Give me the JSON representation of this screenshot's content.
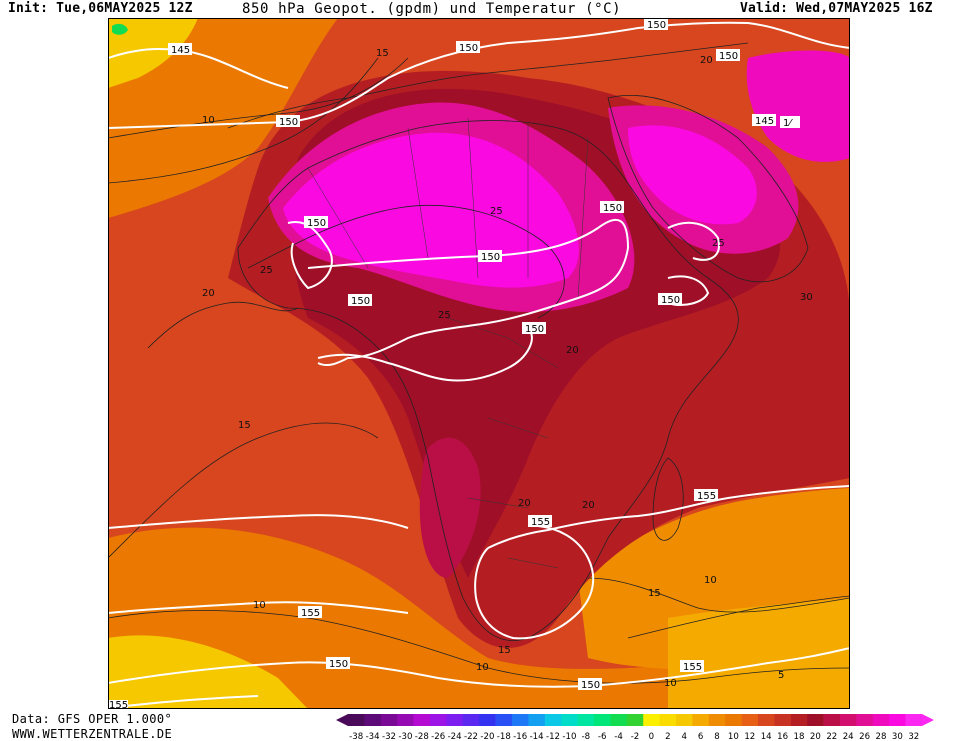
{
  "header": {
    "init": "Init: Tue,06MAY2025 12Z",
    "title": "850 hPa Geopot. (gpdm) und Temperatur (°C)",
    "valid": "Valid: Wed,07MAY2025 16Z"
  },
  "footer": {
    "data_source": "Data: GFS OPER 1.000°",
    "website": "WWW.WETTERZENTRALE.DE"
  },
  "geopotential_labels": [
    {
      "text": "145"
    },
    {
      "text": "150"
    },
    {
      "text": "150"
    },
    {
      "text": "150"
    },
    {
      "text": "150"
    },
    {
      "text": "145"
    },
    {
      "text": "1⁄"
    },
    {
      "text": "150"
    },
    {
      "text": "150"
    },
    {
      "text": "150"
    },
    {
      "text": "150"
    },
    {
      "text": "150"
    },
    {
      "text": "150"
    },
    {
      "text": "155"
    },
    {
      "text": "155"
    },
    {
      "text": "155"
    },
    {
      "text": "155"
    },
    {
      "text": "150"
    },
    {
      "text": "150"
    },
    {
      "text": "155"
    }
  ],
  "isotherm_labels": [
    {
      "text": "10"
    },
    {
      "text": "15"
    },
    {
      "text": "20"
    },
    {
      "text": "25"
    },
    {
      "text": "25"
    },
    {
      "text": "25"
    },
    {
      "text": "20"
    },
    {
      "text": "25"
    },
    {
      "text": "30"
    },
    {
      "text": "20"
    },
    {
      "text": "15"
    },
    {
      "text": "20"
    },
    {
      "text": "15"
    },
    {
      "text": "10"
    },
    {
      "text": "10"
    },
    {
      "text": "15"
    },
    {
      "text": "10"
    },
    {
      "text": "10"
    },
    {
      "text": "5"
    },
    {
      "text": "20"
    }
  ],
  "legend": {
    "ticks": [
      "-38",
      "-34",
      "-32",
      "-30",
      "-28",
      "-26",
      "-24",
      "-22",
      "-20",
      "-18",
      "-16",
      "-14",
      "-12",
      "-10",
      "-8",
      "-6",
      "-4",
      "-2",
      "0",
      "2",
      "4",
      "6",
      "8",
      "10",
      "12",
      "14",
      "16",
      "18",
      "20",
      "22",
      "24",
      "26",
      "28",
      "30",
      "32"
    ],
    "colors": [
      "#4a0a5a",
      "#5c0a78",
      "#7a0a96",
      "#960ab4",
      "#b40ad2",
      "#9d14e6",
      "#7d1ef0",
      "#5a28f0",
      "#3232f0",
      "#2850f5",
      "#1e78f5",
      "#14a0f0",
      "#0ac8e6",
      "#00dcc8",
      "#00e6a0",
      "#00e678",
      "#14dc50",
      "#32d232",
      "#faf000",
      "#fadc00",
      "#f5c800",
      "#f5aa00",
      "#f08c00",
      "#eb7800",
      "#e65f14",
      "#d7461e",
      "#c83223",
      "#b41e23",
      "#a00f28",
      "#b90f46",
      "#d20f6e",
      "#e10f96",
      "#f00abe",
      "#fa0ae1",
      "#fa28f0"
    ]
  }
}
